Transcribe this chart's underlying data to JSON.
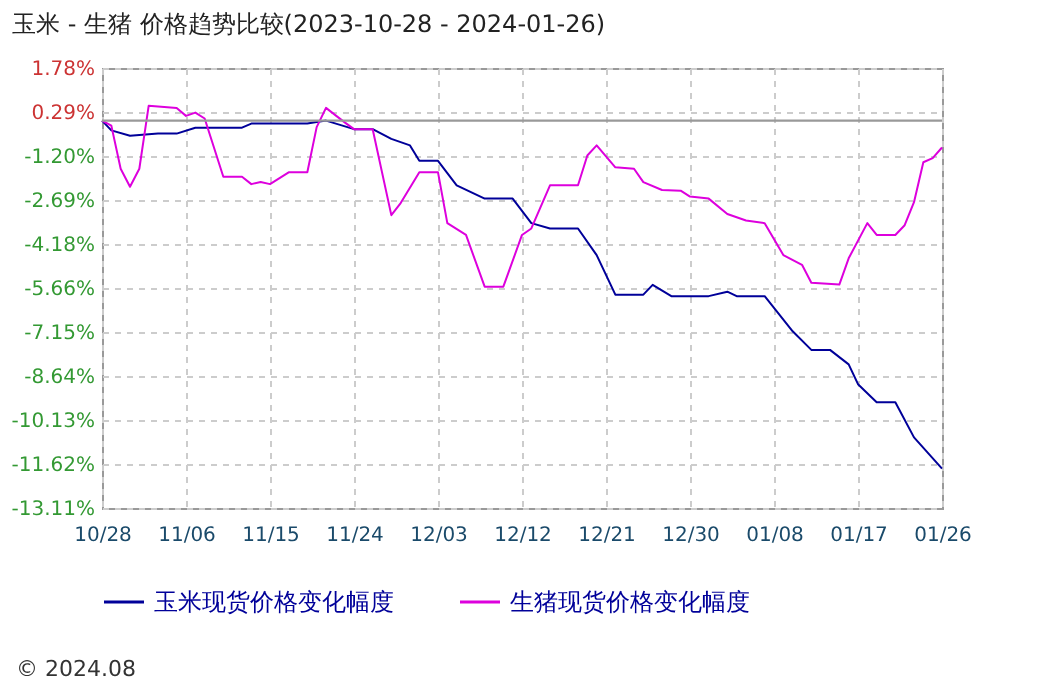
{
  "chart_data": {
    "type": "line",
    "title": "玉米 - 生猪 价格趋势比较(2023-10-28 - 2024-01-26)",
    "xlim": [
      "2023-10-28",
      "2024-01-26"
    ],
    "xticks": [
      {
        "value": "2023-10-28",
        "label": "10/28"
      },
      {
        "value": "2023-11-06",
        "label": "11/06"
      },
      {
        "value": "2023-11-15",
        "label": "11/15"
      },
      {
        "value": "2023-11-24",
        "label": "11/24"
      },
      {
        "value": "2023-12-03",
        "label": "12/03"
      },
      {
        "value": "2023-12-12",
        "label": "12/12"
      },
      {
        "value": "2023-12-21",
        "label": "12/21"
      },
      {
        "value": "2023-12-30",
        "label": "12/30"
      },
      {
        "value": "2024-01-08",
        "label": "01/08"
      },
      {
        "value": "2024-01-17",
        "label": "01/17"
      },
      {
        "value": "2024-01-26",
        "label": "01/26"
      }
    ],
    "ylim": [
      -13.11,
      1.78
    ],
    "yticks": [
      {
        "value": 1.78,
        "label": "1.78%"
      },
      {
        "value": 0.29,
        "label": "0.29%"
      },
      {
        "value": -1.2,
        "label": "-1.20%"
      },
      {
        "value": -2.69,
        "label": "-2.69%"
      },
      {
        "value": -4.18,
        "label": "-4.18%"
      },
      {
        "value": -5.66,
        "label": "-5.66%"
      },
      {
        "value": -7.15,
        "label": "-7.15%"
      },
      {
        "value": -8.64,
        "label": "-8.64%"
      },
      {
        "value": -10.13,
        "label": "-10.13%"
      },
      {
        "value": -11.62,
        "label": "-11.62%"
      },
      {
        "value": -13.11,
        "label": "-13.11%"
      }
    ],
    "grid": true,
    "legend": "bottom",
    "marker": "none",
    "line_style": "solid",
    "ref_lines": [
      {
        "axis": "y",
        "value": 0,
        "color": "#999999"
      }
    ],
    "annotations": [
      "© 2024.08"
    ],
    "series": [
      {
        "name": "玉米现货价格变化幅度",
        "color": "#000099",
        "x": [
          "2023-10-28",
          "2023-10-29",
          "2023-10-31",
          "2023-11-03",
          "2023-11-05",
          "2023-11-07",
          "2023-11-12",
          "2023-11-13",
          "2023-11-19",
          "2023-11-21",
          "2023-11-24",
          "2023-11-26",
          "2023-11-28",
          "2023-11-30",
          "2023-12-01",
          "2023-12-03",
          "2023-12-05",
          "2023-12-08",
          "2023-12-11",
          "2023-12-13",
          "2023-12-15",
          "2023-12-18",
          "2023-12-20",
          "2023-12-22",
          "2023-12-25",
          "2023-12-26",
          "2023-12-28",
          "2024-01-01",
          "2024-01-03",
          "2024-01-04",
          "2024-01-07",
          "2024-01-10",
          "2024-01-12",
          "2024-01-14",
          "2024-01-16",
          "2024-01-17",
          "2024-01-19",
          "2024-01-21",
          "2024-01-23",
          "2024-01-26"
        ],
        "values": [
          0,
          -0.33,
          -0.51,
          -0.44,
          -0.44,
          -0.24,
          -0.24,
          -0.1,
          -0.1,
          0,
          -0.29,
          -0.29,
          -0.62,
          -0.84,
          -1.36,
          -1.36,
          -2.19,
          -2.64,
          -2.64,
          -3.47,
          -3.65,
          -3.65,
          -4.55,
          -5.89,
          -5.89,
          -5.56,
          -5.94,
          -5.94,
          -5.79,
          -5.94,
          -5.94,
          -7.13,
          -7.76,
          -7.76,
          -8.25,
          -8.92,
          -9.53,
          -9.53,
          -10.72,
          -11.78
        ]
      },
      {
        "name": "生猪现货价格变化幅度",
        "color": "#dd00dd",
        "x": [
          "2023-10-28",
          "2023-10-29",
          "2023-10-30",
          "2023-10-31",
          "2023-11-01",
          "2023-11-02",
          "2023-11-05",
          "2023-11-06",
          "2023-11-07",
          "2023-11-08",
          "2023-11-10",
          "2023-11-12",
          "2023-11-13",
          "2023-11-14",
          "2023-11-15",
          "2023-11-17",
          "2023-11-19",
          "2023-11-20",
          "2023-11-21",
          "2023-11-23",
          "2023-11-24",
          "2023-11-26",
          "2023-11-28",
          "2023-11-29",
          "2023-12-01",
          "2023-12-03",
          "2023-12-04",
          "2023-12-06",
          "2023-12-08",
          "2023-12-10",
          "2023-12-12",
          "2023-12-13",
          "2023-12-15",
          "2023-12-18",
          "2023-12-19",
          "2023-12-20",
          "2023-12-22",
          "2023-12-24",
          "2023-12-25",
          "2023-12-27",
          "2023-12-29",
          "2023-12-30",
          "2024-01-01",
          "2024-01-03",
          "2024-01-05",
          "2024-01-07",
          "2024-01-09",
          "2024-01-11",
          "2024-01-12",
          "2024-01-15",
          "2024-01-16",
          "2024-01-18",
          "2024-01-19",
          "2024-01-21",
          "2024-01-22",
          "2024-01-23",
          "2024-01-24",
          "2024-01-25",
          "2024-01-26"
        ],
        "values": [
          0,
          -0.17,
          -1.63,
          -2.24,
          -1.63,
          0.5,
          0.43,
          0.16,
          0.27,
          0.07,
          -1.9,
          -1.9,
          -2.15,
          -2.08,
          -2.15,
          -1.75,
          -1.75,
          -0.22,
          0.43,
          -0.06,
          -0.29,
          -0.29,
          -3.2,
          -2.79,
          -1.75,
          -1.75,
          -3.47,
          -3.87,
          -5.62,
          -5.62,
          -3.87,
          -3.65,
          -2.19,
          -2.19,
          -1.18,
          -0.84,
          -1.58,
          -1.63,
          -2.08,
          -2.35,
          -2.37,
          -2.57,
          -2.64,
          -3.16,
          -3.38,
          -3.47,
          -4.55,
          -4.88,
          -5.49,
          -5.55,
          -4.66,
          -3.47,
          -3.87,
          -3.87,
          -3.54,
          -2.76,
          -1.41,
          -1.27,
          -0.91
        ]
      }
    ]
  }
}
